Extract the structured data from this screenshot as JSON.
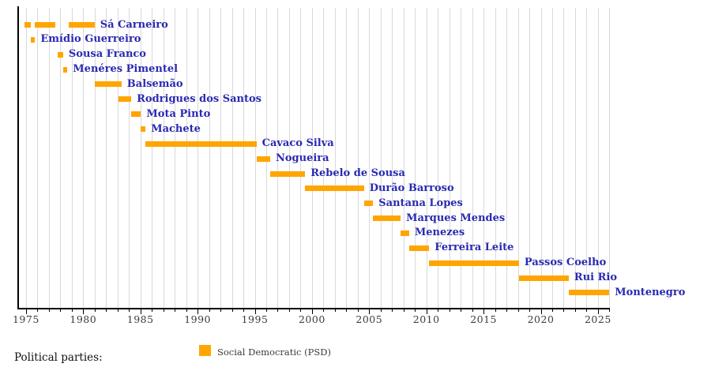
{
  "chart_data": {
    "type": "gantt",
    "title": "",
    "description": "Timeline of Social Democratic (PSD) party leaders, bars span years in office",
    "x_axis": {
      "min": 1974.25,
      "max": 2026.0,
      "grid_year_start": 1975,
      "grid_year_end": 2026,
      "major_tick_step": 5,
      "tick_labels": [
        "1975",
        "1980",
        "1985",
        "1990",
        "1995",
        "2000",
        "2005",
        "2010",
        "2015",
        "2020",
        "2025"
      ]
    },
    "rows": [
      {
        "name": "Sá Carneiro",
        "segments": [
          [
            1974.87,
            1975.4
          ],
          [
            1975.8,
            1977.6
          ],
          [
            1978.75,
            1981.0
          ]
        ]
      },
      {
        "name": "Emídio Guerreiro",
        "segments": [
          [
            1975.4,
            1975.8
          ]
        ]
      },
      {
        "name": "Sousa Franco",
        "segments": [
          [
            1977.8,
            1978.25
          ]
        ]
      },
      {
        "name": "Menéres Pimentel",
        "segments": [
          [
            1978.28,
            1978.62
          ]
        ]
      },
      {
        "name": "Balsemão",
        "segments": [
          [
            1981.0,
            1983.35
          ]
        ]
      },
      {
        "name": "Rodrigues dos Santos",
        "segments": [
          [
            1983.1,
            1984.2
          ]
        ]
      },
      {
        "name": "Mota Pinto",
        "segments": [
          [
            1984.2,
            1985.05
          ]
        ]
      },
      {
        "name": "Machete",
        "segments": [
          [
            1985.05,
            1985.45
          ]
        ]
      },
      {
        "name": "Cavaco Silva",
        "segments": [
          [
            1985.45,
            1995.15
          ]
        ]
      },
      {
        "name": "Nogueira",
        "segments": [
          [
            1995.15,
            1996.35
          ]
        ]
      },
      {
        "name": "Rebelo de Sousa",
        "segments": [
          [
            1996.35,
            1999.4
          ]
        ]
      },
      {
        "name": "Durão Barroso",
        "segments": [
          [
            1999.4,
            2004.55
          ]
        ]
      },
      {
        "name": "Santana Lopes",
        "segments": [
          [
            2004.55,
            2005.35
          ]
        ]
      },
      {
        "name": "Marques Mendes",
        "segments": [
          [
            2005.35,
            2007.75
          ]
        ]
      },
      {
        "name": "Menezes",
        "segments": [
          [
            2007.75,
            2008.5
          ]
        ]
      },
      {
        "name": "Ferreira Leite",
        "segments": [
          [
            2008.5,
            2010.25
          ]
        ]
      },
      {
        "name": "Passos Coelho",
        "segments": [
          [
            2010.25,
            2018.1
          ]
        ]
      },
      {
        "name": "Rui Rio",
        "segments": [
          [
            2018.1,
            2022.45
          ]
        ]
      },
      {
        "name": "Montenegro",
        "segments": [
          [
            2022.45,
            2026.0
          ]
        ]
      }
    ],
    "colors": {
      "bar": "#FFA500",
      "leader_label": "#2A2AB2",
      "grid": "#D9D9D9",
      "axis": "#000000",
      "tick_label": "#3B3B3B"
    },
    "legend_position": "bottom"
  },
  "legend": {
    "title": "Political parties:",
    "items": [
      {
        "label": "Social Democratic (PSD)",
        "color": "#FFA500"
      }
    ]
  }
}
